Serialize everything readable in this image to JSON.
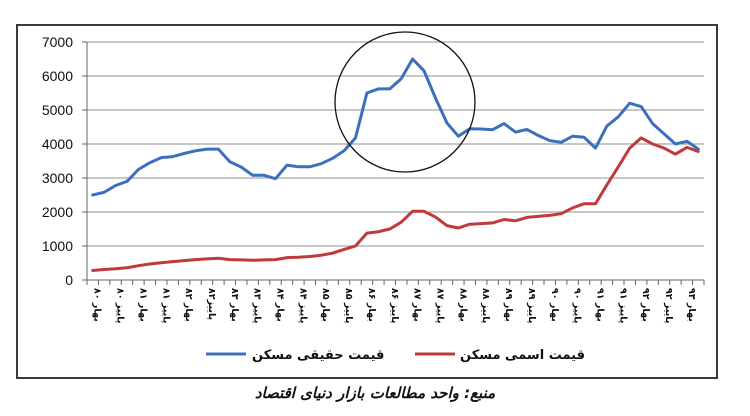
{
  "chart_data": {
    "type": "line",
    "title": "",
    "xlabel": "",
    "ylabel": "",
    "ylim": [
      0,
      7000
    ],
    "y_ticks": [
      0,
      1000,
      2000,
      3000,
      4000,
      5000,
      6000,
      7000
    ],
    "grid": true,
    "legend_position": "bottom",
    "x_tick_labels": [
      "بهار ۸۰",
      "پاییز ۸۰",
      "بهار ۸۱",
      "پاییز ۸۱",
      "بهار ۸۲",
      "پاییز۸۲",
      "بهار ۸۳",
      "پاییز ۸۳",
      "بهار ۸۴",
      "پاییز ۸۴",
      "بهار ۸۵",
      "پاییز ۸۵",
      "بهار ۸۶",
      "پاییز ۸۶",
      "بهار ۸۷",
      "پاییز ۸۷",
      "بهار ۸۸",
      "پاییز ۸۸",
      "بهار ۸۹",
      "پاییز ۸۹",
      "بهار ۹۰",
      "پاییز ۹۰",
      "بهار ۹۱",
      "پاییز ۹۱",
      "بهار ۹۲",
      "پاییز ۹۲",
      "بهار ۹۳"
    ],
    "series": [
      {
        "name": "قیمت حقیقی مسکن",
        "color": "#3c6fbd",
        "values": [
          2500,
          2580,
          2780,
          2900,
          3250,
          3450,
          3600,
          3630,
          3720,
          3800,
          3850,
          3850,
          3480,
          3320,
          3080,
          3080,
          2980,
          3380,
          3330,
          3330,
          3420,
          3580,
          3800,
          4180,
          5500,
          5620,
          5620,
          5920,
          6500,
          6150,
          5350,
          4620,
          4230,
          4450,
          4440,
          4420,
          4600,
          4350,
          4430,
          4250,
          4100,
          4050,
          4230,
          4200,
          3880,
          4530,
          4800,
          5200,
          5100,
          4600,
          4300,
          4000,
          4080,
          3850
        ]
      },
      {
        "name": "قیمت اسمی مسکن",
        "color": "#c0393b",
        "values": [
          280,
          310,
          330,
          360,
          420,
          470,
          510,
          540,
          570,
          600,
          620,
          640,
          600,
          590,
          580,
          590,
          600,
          660,
          670,
          690,
          730,
          790,
          900,
          1000,
          1380,
          1420,
          1500,
          1700,
          2020,
          2020,
          1850,
          1600,
          1530,
          1640,
          1660,
          1680,
          1780,
          1740,
          1840,
          1870,
          1900,
          1950,
          2120,
          2240,
          2240,
          2800,
          3330,
          3880,
          4180,
          4000,
          3880,
          3700,
          3900,
          3780
        ]
      }
    ],
    "annotations": [
      {
        "type": "circle",
        "description": "highlight around 2007-2008 peak (بهار ۸۶ - پاییز ۸۷)"
      }
    ]
  },
  "legend": {
    "items": [
      {
        "label": "قیمت حقیقی مسکن",
        "color": "#3c6fbd"
      },
      {
        "label": "قیمت اسمی مسکن",
        "color": "#c0393b"
      }
    ]
  },
  "source": "منبع: واحد مطالعات بازار دنیای اقتصاد"
}
